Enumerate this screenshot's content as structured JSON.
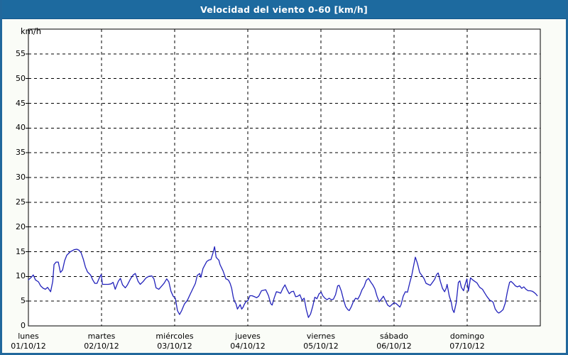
{
  "window": {
    "title": "Velocidad del viento 0-60 [km/h]"
  },
  "colors": {
    "titlebar": "#1d6a9f",
    "frame_border": "#21689c",
    "page_background": "#fafcf7",
    "plot_background": "#ffffff",
    "grid": "#000000",
    "axis": "#000000",
    "line": "#2222bb",
    "title_text": "#ffffff",
    "label_text": "#000000"
  },
  "chart_data": {
    "type": "line",
    "title": "Velocidad del viento 0-60 [km/h]",
    "ylabel": "km/h",
    "ylim": [
      0,
      60
    ],
    "yticks": [
      0,
      5,
      10,
      15,
      20,
      25,
      30,
      35,
      40,
      45,
      50,
      55
    ],
    "xlim": [
      0,
      168
    ],
    "x_unit": "hours",
    "grid": "dashed-black",
    "legend_position": "none",
    "x_days": [
      {
        "name": "lunes",
        "date": "01/10/12"
      },
      {
        "name": "martes",
        "date": "02/10/12"
      },
      {
        "name": "miércoles",
        "date": "03/10/12"
      },
      {
        "name": "jueves",
        "date": "04/10/12"
      },
      {
        "name": "viernes",
        "date": "05/10/12"
      },
      {
        "name": "sábado",
        "date": "06/10/12"
      },
      {
        "name": "domingo",
        "date": "07/10/12"
      }
    ],
    "series": [
      {
        "name": "velocidad del viento",
        "unit": "km/h",
        "points": [
          [
            0,
            9.3
          ],
          [
            0.9,
            9.8
          ],
          [
            1.6,
            10.3
          ],
          [
            2.3,
            9.3
          ],
          [
            3.3,
            8.9
          ],
          [
            4,
            8.1
          ],
          [
            4.9,
            7.6
          ],
          [
            5.6,
            7.4
          ],
          [
            6.3,
            7.8
          ],
          [
            7.3,
            6.9
          ],
          [
            8,
            9
          ],
          [
            8.4,
            12.4
          ],
          [
            9.1,
            12.9
          ],
          [
            9.8,
            12.9
          ],
          [
            10.5,
            10.8
          ],
          [
            11.2,
            11.3
          ],
          [
            11.9,
            13.2
          ],
          [
            12.6,
            14.3
          ],
          [
            13.8,
            15
          ],
          [
            15,
            15.4
          ],
          [
            15.9,
            15.5
          ],
          [
            16.6,
            15.3
          ],
          [
            17.3,
            14.8
          ],
          [
            18,
            13.5
          ],
          [
            18.7,
            11.9
          ],
          [
            19.4,
            10.9
          ],
          [
            20.4,
            10.3
          ],
          [
            21.1,
            9.3
          ],
          [
            21.8,
            8.6
          ],
          [
            22.5,
            8.6
          ],
          [
            23.2,
            9.6
          ],
          [
            23.9,
            10.4
          ],
          [
            24.3,
            8.4
          ],
          [
            25.3,
            8.4
          ],
          [
            26.2,
            8.4
          ],
          [
            27.1,
            8.5
          ],
          [
            27.8,
            8.8
          ],
          [
            28.5,
            7.4
          ],
          [
            29.5,
            9
          ],
          [
            30.2,
            9.6
          ],
          [
            30.9,
            8.3
          ],
          [
            31.8,
            7.7
          ],
          [
            32.5,
            8.3
          ],
          [
            33.5,
            9.5
          ],
          [
            34.4,
            10.3
          ],
          [
            35.1,
            10.6
          ],
          [
            36,
            9
          ],
          [
            36.7,
            8.4
          ],
          [
            37.7,
            9
          ],
          [
            38.6,
            9.7
          ],
          [
            39.5,
            10
          ],
          [
            40.5,
            10.1
          ],
          [
            41.2,
            9.5
          ],
          [
            41.9,
            7.7
          ],
          [
            42.8,
            7.4
          ],
          [
            43.8,
            8.1
          ],
          [
            44.5,
            8.6
          ],
          [
            45.4,
            9.5
          ],
          [
            46.1,
            8.9
          ],
          [
            46.8,
            7
          ],
          [
            47.5,
            6
          ],
          [
            48.2,
            5.6
          ],
          [
            48.9,
            3.1
          ],
          [
            49.6,
            2.3
          ],
          [
            50.3,
            3.1
          ],
          [
            51.2,
            4.4
          ],
          [
            52.2,
            5.2
          ],
          [
            53.1,
            6.4
          ],
          [
            54.1,
            7.7
          ],
          [
            54.8,
            8.6
          ],
          [
            55.4,
            10.2
          ],
          [
            56.2,
            10.6
          ],
          [
            56.6,
            9.8
          ],
          [
            57.3,
            11.6
          ],
          [
            58,
            12.4
          ],
          [
            58.5,
            13
          ],
          [
            59.2,
            13.3
          ],
          [
            59.9,
            13.4
          ],
          [
            60.6,
            14.8
          ],
          [
            61.1,
            16
          ],
          [
            61.6,
            13.9
          ],
          [
            62,
            13.6
          ],
          [
            62.5,
            13.3
          ],
          [
            62.9,
            12.4
          ],
          [
            63.9,
            11.1
          ],
          [
            64.8,
            9.5
          ],
          [
            65.3,
            9.4
          ],
          [
            65.7,
            9.2
          ],
          [
            66.2,
            8.6
          ],
          [
            66.7,
            7.6
          ],
          [
            67.2,
            5.9
          ],
          [
            67.6,
            5
          ],
          [
            68.1,
            4.5
          ],
          [
            68.6,
            3.4
          ],
          [
            69.1,
            3.9
          ],
          [
            69.5,
            4.3
          ],
          [
            70,
            3.4
          ],
          [
            70.4,
            3.7
          ],
          [
            70.9,
            4.4
          ],
          [
            71.4,
            4.9
          ],
          [
            72,
            5.1
          ],
          [
            72.7,
            6.1
          ],
          [
            73.4,
            6.1
          ],
          [
            74.2,
            5.9
          ],
          [
            74.9,
            5.7
          ],
          [
            75.6,
            6
          ],
          [
            76.5,
            7.1
          ],
          [
            77.2,
            7.2
          ],
          [
            77.9,
            7.3
          ],
          [
            78.8,
            6.1
          ],
          [
            79.5,
            4.5
          ],
          [
            80,
            4.2
          ],
          [
            80.7,
            5.7
          ],
          [
            81.4,
            6.9
          ],
          [
            82.1,
            6.8
          ],
          [
            82.8,
            6.6
          ],
          [
            83.5,
            7.6
          ],
          [
            84.2,
            8.3
          ],
          [
            84.9,
            7.3
          ],
          [
            85.6,
            6.5
          ],
          [
            86.3,
            6.9
          ],
          [
            87,
            7
          ],
          [
            87.7,
            5.9
          ],
          [
            88.4,
            6
          ],
          [
            89.1,
            6.3
          ],
          [
            89.8,
            5.2
          ],
          [
            90.5,
            5.6
          ],
          [
            91.2,
            3.3
          ],
          [
            91.9,
            1.7
          ],
          [
            92.6,
            2.4
          ],
          [
            93.3,
            3.9
          ],
          [
            94,
            5.8
          ],
          [
            94.7,
            5.5
          ],
          [
            95.4,
            6.5
          ],
          [
            96.1,
            6.8
          ],
          [
            96.6,
            6.1
          ],
          [
            97.3,
            5.6
          ],
          [
            98,
            5.3
          ],
          [
            98.7,
            5.6
          ],
          [
            99.4,
            5.3
          ],
          [
            100.1,
            5.4
          ],
          [
            100.8,
            6.3
          ],
          [
            101.5,
            8.1
          ],
          [
            102,
            8.2
          ],
          [
            102.7,
            7
          ],
          [
            103.4,
            5.3
          ],
          [
            104.1,
            3.9
          ],
          [
            104.8,
            3.3
          ],
          [
            105.3,
            3.1
          ],
          [
            106,
            3.9
          ],
          [
            106.7,
            5
          ],
          [
            107.4,
            5.6
          ],
          [
            108.1,
            5.4
          ],
          [
            108.8,
            6.2
          ],
          [
            109.5,
            7.3
          ],
          [
            110.2,
            8
          ],
          [
            110.9,
            9.2
          ],
          [
            111.6,
            9.6
          ],
          [
            112.3,
            8.9
          ],
          [
            113,
            8.3
          ],
          [
            113.7,
            7.5
          ],
          [
            114.4,
            6
          ],
          [
            115.1,
            4.9
          ],
          [
            115.8,
            5.4
          ],
          [
            116.5,
            6
          ],
          [
            117.2,
            5.1
          ],
          [
            117.9,
            4.2
          ],
          [
            118.6,
            3.9
          ],
          [
            119.3,
            4.3
          ],
          [
            120,
            4.7
          ],
          [
            120.7,
            4.5
          ],
          [
            121.4,
            4.1
          ],
          [
            121.9,
            3.8
          ],
          [
            122.3,
            4.3
          ],
          [
            123,
            6
          ],
          [
            123.7,
            6.9
          ],
          [
            124.4,
            6.8
          ],
          [
            125.1,
            8.6
          ],
          [
            125.8,
            10.2
          ],
          [
            126.5,
            12.4
          ],
          [
            127,
            13.9
          ],
          [
            127.7,
            12.6
          ],
          [
            128.4,
            10.8
          ],
          [
            129.1,
            10.2
          ],
          [
            129.8,
            9.6
          ],
          [
            130.5,
            8.6
          ],
          [
            131.2,
            8.4
          ],
          [
            131.9,
            8.2
          ],
          [
            132.6,
            8.8
          ],
          [
            133.3,
            9.4
          ],
          [
            134,
            10.4
          ],
          [
            134.5,
            10.7
          ],
          [
            135.2,
            9
          ],
          [
            135.9,
            7.6
          ],
          [
            136.6,
            6.9
          ],
          [
            137.1,
            7.6
          ],
          [
            137.4,
            8.4
          ],
          [
            138.1,
            6.1
          ],
          [
            138.8,
            4.7
          ],
          [
            139.2,
            3.3
          ],
          [
            139.7,
            2.7
          ],
          [
            140.4,
            4.7
          ],
          [
            141.1,
            8.8
          ],
          [
            141.6,
            9.1
          ],
          [
            142.1,
            7.8
          ],
          [
            142.8,
            7.1
          ],
          [
            143.2,
            8.1
          ],
          [
            143.9,
            9.5
          ],
          [
            144.4,
            7
          ],
          [
            145.1,
            9.7
          ],
          [
            145.8,
            9.3
          ],
          [
            146.5,
            9
          ],
          [
            147.2,
            8.7
          ],
          [
            148.1,
            7.8
          ],
          [
            149,
            7.4
          ],
          [
            149.7,
            6.7
          ],
          [
            150.4,
            6
          ],
          [
            151.4,
            5.2
          ],
          [
            152.1,
            5
          ],
          [
            152.5,
            4.8
          ],
          [
            153.2,
            3.4
          ],
          [
            153.9,
            2.8
          ],
          [
            154.4,
            2.6
          ],
          [
            155.1,
            2.9
          ],
          [
            155.8,
            3.3
          ],
          [
            156.5,
            4.6
          ],
          [
            157.2,
            6.9
          ],
          [
            157.9,
            8.8
          ],
          [
            158.4,
            9
          ],
          [
            159.1,
            8.6
          ],
          [
            159.8,
            8.1
          ],
          [
            160.5,
            7.9
          ],
          [
            161.2,
            8.1
          ],
          [
            161.9,
            7.6
          ],
          [
            162.6,
            7.9
          ],
          [
            163.3,
            7.4
          ],
          [
            164,
            7.1
          ],
          [
            164.7,
            7.1
          ],
          [
            165.4,
            7
          ],
          [
            166.1,
            6.7
          ],
          [
            166.6,
            6.4
          ],
          [
            167,
            6.1
          ]
        ]
      }
    ]
  }
}
